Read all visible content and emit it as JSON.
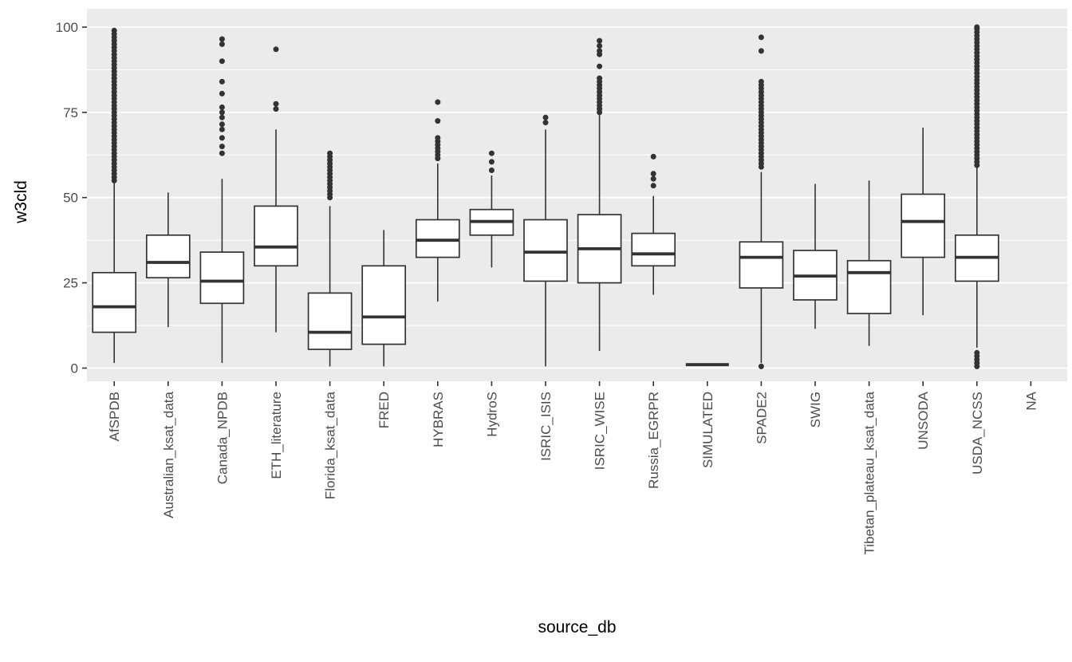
{
  "figure": {
    "kind": "boxplot-figure",
    "background": "#FFFFFF"
  },
  "chart_data": {
    "type": "boxplot",
    "title": "",
    "xlabel": "source_db",
    "ylabel": "w3cld",
    "ylim": [
      0,
      100
    ],
    "y_major_ticks": [
      0,
      25,
      50,
      75,
      100
    ],
    "y_minor_ticks": [
      12.5,
      37.5,
      62.5,
      87.5
    ],
    "grid": "white major and minor horizontal lines on gray panel",
    "legend": "none",
    "panel_bg": "#EBEBEB",
    "gridline_color": "#FFFFFF",
    "box_color": "#333333",
    "box_fill": "#FFFFFF",
    "tick_label_color": "#4D4D4D",
    "categories": [
      "AfSPDB",
      "Australian_ksat_data",
      "Canada_NPDB",
      "ETH_literature",
      "Florida_ksat_data",
      "FRED",
      "HYBRAS",
      "HydroS",
      "ISRIC_ISIS",
      "ISRIC_WISE",
      "Russia_EGRPR",
      "SIMULATED",
      "SPADE2",
      "SWIG",
      "Tibetan_plateau_ksat_data",
      "UNSODA",
      "USDA_NCSS",
      "NA"
    ],
    "boxes": [
      {
        "label": "AfSPDB",
        "whisker_low": 1.5,
        "q1": 10.5,
        "median": 18,
        "q3": 28,
        "whisker_high": 55,
        "outliers": [
          55,
          56,
          57,
          58,
          59,
          60,
          61,
          62,
          63,
          64,
          65,
          66,
          67,
          68,
          69,
          70,
          71,
          72,
          73,
          74,
          75,
          76,
          77,
          78,
          79,
          80,
          81,
          82,
          83,
          84,
          85,
          86,
          87,
          88,
          89,
          90,
          91,
          92,
          93,
          94,
          95,
          96,
          97,
          98,
          99
        ]
      },
      {
        "label": "Australian_ksat_data",
        "whisker_low": 12,
        "q1": 26.5,
        "median": 31,
        "q3": 39,
        "whisker_high": 51.5,
        "outliers": []
      },
      {
        "label": "Canada_NPDB",
        "whisker_low": 1.5,
        "q1": 19,
        "median": 25.5,
        "q3": 34,
        "whisker_high": 55.5,
        "outliers": [
          63,
          65,
          67.5,
          70,
          71.5,
          73.5,
          75,
          76.5,
          80.5,
          84,
          90,
          95,
          96.5
        ]
      },
      {
        "label": "ETH_literature",
        "whisker_low": 10.5,
        "q1": 30,
        "median": 35.5,
        "q3": 47.5,
        "whisker_high": 70,
        "outliers": [
          76,
          77.5,
          93.5
        ]
      },
      {
        "label": "Florida_ksat_data",
        "whisker_low": 0.5,
        "q1": 5.5,
        "median": 10.5,
        "q3": 22,
        "whisker_high": 47.5,
        "outliers": [
          50,
          51,
          52,
          53,
          54,
          55,
          56,
          57,
          58,
          59,
          60,
          61,
          62,
          63
        ]
      },
      {
        "label": "FRED",
        "whisker_low": 0.5,
        "q1": 7,
        "median": 15,
        "q3": 30,
        "whisker_high": 40.5,
        "outliers": []
      },
      {
        "label": "HYBRAS",
        "whisker_low": 19.5,
        "q1": 32.5,
        "median": 37.5,
        "q3": 43.5,
        "whisker_high": 60,
        "outliers": [
          61.5,
          62.5,
          63.5,
          64.5,
          65.5,
          66.5,
          67.5,
          72.5,
          78
        ]
      },
      {
        "label": "HydroS",
        "whisker_low": 29.5,
        "q1": 39,
        "median": 43,
        "q3": 46.5,
        "whisker_high": 56.5,
        "outliers": [
          58,
          60.5,
          63
        ]
      },
      {
        "label": "ISRIC_ISIS",
        "whisker_low": 0.5,
        "q1": 25.5,
        "median": 34,
        "q3": 43.5,
        "whisker_high": 70,
        "outliers": [
          72,
          73.5
        ]
      },
      {
        "label": "ISRIC_WISE",
        "whisker_low": 5,
        "q1": 25,
        "median": 35,
        "q3": 45,
        "whisker_high": 74.5,
        "outliers": [
          75,
          76,
          77,
          78,
          79,
          80,
          81,
          82,
          83,
          84,
          85,
          88.5,
          92,
          93,
          94.5,
          96
        ]
      },
      {
        "label": "Russia_EGRPR",
        "whisker_low": 21.5,
        "q1": 30,
        "median": 33.5,
        "q3": 39.5,
        "whisker_high": 50.5,
        "outliers": [
          53.5,
          55.5,
          57,
          62
        ]
      },
      {
        "label": "SIMULATED",
        "whisker_low": 1,
        "q1": 1,
        "median": 1,
        "q3": 1,
        "whisker_high": 1,
        "outliers": []
      },
      {
        "label": "SPADE2",
        "whisker_low": 1.5,
        "q1": 23.5,
        "median": 32.5,
        "q3": 37,
        "whisker_high": 57.5,
        "outliers": [
          0.5,
          59,
          60,
          61,
          62,
          63,
          64,
          65,
          66,
          67,
          68,
          69,
          70,
          71,
          72,
          73,
          74,
          75,
          76,
          77,
          78,
          79,
          80,
          81,
          82,
          83,
          84,
          93,
          97
        ]
      },
      {
        "label": "SWIG",
        "whisker_low": 11.5,
        "q1": 20,
        "median": 27,
        "q3": 34.5,
        "whisker_high": 54,
        "outliers": []
      },
      {
        "label": "Tibetan_plateau_ksat_data",
        "whisker_low": 6.5,
        "q1": 16,
        "median": 28,
        "q3": 31.5,
        "whisker_high": 55,
        "outliers": []
      },
      {
        "label": "UNSODA",
        "whisker_low": 15.5,
        "q1": 32.5,
        "median": 43,
        "q3": 51,
        "whisker_high": 70.5,
        "outliers": []
      },
      {
        "label": "USDA_NCSS",
        "whisker_low": 6,
        "q1": 25.5,
        "median": 32.5,
        "q3": 39,
        "whisker_high": 59,
        "outliers": [
          0.5,
          1.5,
          2.5,
          3.5,
          4.5,
          59.5,
          60.5,
          61.5,
          62.5,
          63.5,
          64.5,
          65.5,
          66.5,
          67.5,
          68.5,
          69.5,
          70.5,
          71.5,
          72.5,
          73.5,
          74.5,
          75.5,
          76.5,
          77.5,
          78.5,
          79.5,
          80.5,
          81.5,
          82.5,
          83.5,
          84.5,
          85.5,
          86.5,
          87.5,
          88.5,
          89.5,
          90.5,
          91.5,
          92.5,
          93.5,
          94.5,
          95.5,
          96.5,
          97.5,
          98.5,
          99.5,
          100
        ],
        "no_data": false
      },
      {
        "label": "NA",
        "whisker_low": null,
        "q1": null,
        "median": null,
        "q3": null,
        "whisker_high": null,
        "outliers": [],
        "no_data": true
      }
    ]
  }
}
